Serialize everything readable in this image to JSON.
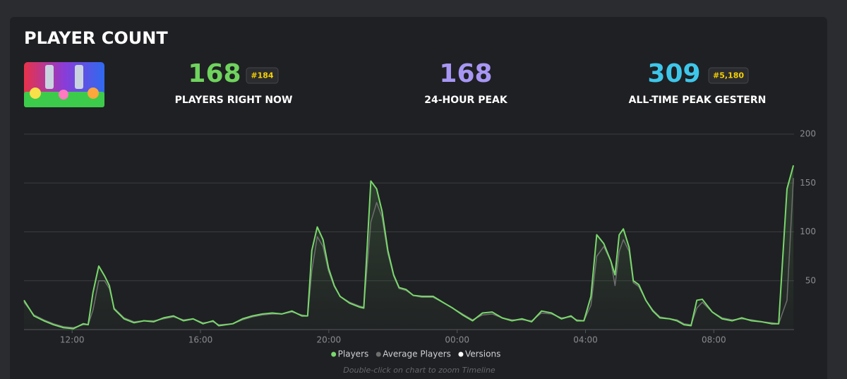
{
  "header": {
    "title": "PLAYER COUNT"
  },
  "stats": [
    {
      "value": "168",
      "label": "PLAYERS RIGHT NOW",
      "rank": "#184",
      "color": "#6fd35e"
    },
    {
      "value": "168",
      "label": "24-HOUR PEAK",
      "color": "#a896f5"
    },
    {
      "value": "309",
      "label": "ALL-TIME PEAK GESTERN",
      "rank": "#5,180",
      "color": "#3ec6ea"
    }
  ],
  "chart_data": {
    "type": "line",
    "x": [
      10.5,
      10.81,
      11.12,
      11.42,
      11.73,
      12.04,
      12.35,
      12.5,
      12.65,
      12.83,
      13.01,
      13.16,
      13.31,
      13.62,
      13.93,
      14.24,
      14.54,
      14.85,
      15.16,
      15.47,
      15.77,
      16.08,
      16.39,
      16.57,
      17.01,
      17.31,
      17.62,
      17.93,
      18.24,
      18.54,
      18.85,
      19.16,
      19.34,
      19.47,
      19.64,
      19.82,
      19.99,
      20.17,
      20.35,
      20.65,
      20.96,
      21.09,
      21.31,
      21.49,
      21.66,
      21.84,
      22.02,
      22.19,
      22.41,
      22.63,
      22.9,
      23.25,
      23.55,
      23.86,
      24.17,
      24.48,
      24.79,
      25.09,
      25.4,
      25.71,
      26.02,
      26.32,
      26.63,
      26.94,
      27.25,
      27.55,
      27.73,
      27.95,
      28.17,
      28.35,
      28.57,
      28.79,
      28.92,
      29.05,
      29.18,
      29.36,
      29.49,
      29.66,
      29.88,
      30.1,
      30.32,
      30.63,
      30.85,
      31.07,
      31.29,
      31.47,
      31.64,
      31.95,
      32.26,
      32.57,
      32.87,
      33.18,
      33.49,
      33.8,
      34.02,
      34.28,
      34.48
    ],
    "series": [
      {
        "name": "Players",
        "color": "#79d86c",
        "values": [
          30,
          14,
          9,
          5,
          2,
          1,
          6,
          5,
          38,
          65,
          55,
          45,
          21,
          11,
          7,
          9,
          8,
          12,
          14,
          9,
          11,
          6,
          9,
          4,
          6,
          11,
          14,
          16,
          17,
          16,
          19,
          14,
          14,
          81,
          105,
          92,
          63,
          45,
          34,
          27,
          23,
          22,
          152,
          144,
          121,
          81,
          56,
          43,
          41,
          35,
          34,
          34,
          28,
          22,
          15,
          9,
          17,
          18,
          12,
          9,
          11,
          8,
          19,
          17,
          11,
          14,
          9,
          9,
          34,
          97,
          88,
          70,
          56,
          97,
          103,
          84,
          50,
          46,
          30,
          19,
          12,
          11,
          9,
          5,
          4,
          30,
          31,
          18,
          11,
          9,
          12,
          9,
          8,
          6,
          6,
          144,
          168
        ]
      },
      {
        "name": "Average Players",
        "color": "#6e6e6e",
        "values": [
          28,
          15,
          10,
          6,
          3,
          2,
          5,
          5,
          20,
          50,
          50,
          42,
          22,
          12,
          8,
          9,
          9,
          11,
          13,
          10,
          11,
          7,
          8,
          5,
          6,
          10,
          13,
          15,
          16,
          16,
          18,
          15,
          14,
          60,
          95,
          85,
          60,
          44,
          34,
          28,
          24,
          23,
          110,
          130,
          115,
          78,
          55,
          42,
          40,
          35,
          33,
          33,
          28,
          22,
          16,
          10,
          15,
          16,
          12,
          10,
          10,
          9,
          17,
          16,
          12,
          13,
          10,
          9,
          25,
          75,
          85,
          70,
          45,
          80,
          92,
          80,
          48,
          44,
          30,
          20,
          13,
          11,
          10,
          6,
          5,
          22,
          28,
          18,
          12,
          10,
          11,
          10,
          8,
          7,
          6,
          30,
          155
        ]
      }
    ],
    "versions": {
      "name": "Versions",
      "color": "#ffffff"
    },
    "xlim": [
      10.5,
      34.5
    ],
    "xticks": [
      {
        "value": 12,
        "label": "12:00"
      },
      {
        "value": 16,
        "label": "16:00"
      },
      {
        "value": 20,
        "label": "20:00"
      },
      {
        "value": 24,
        "label": "00:00"
      },
      {
        "value": 28,
        "label": "04:00"
      },
      {
        "value": 32,
        "label": "08:00"
      }
    ],
    "ylim": [
      0,
      200
    ],
    "yticks": [
      50,
      100,
      150,
      200
    ],
    "grid": true,
    "note": "Double-click on chart to zoom Timeline"
  }
}
